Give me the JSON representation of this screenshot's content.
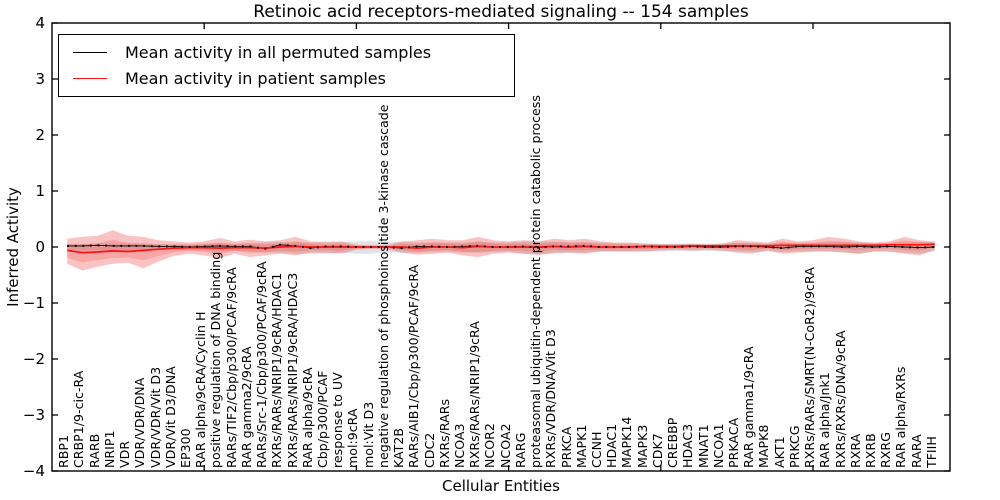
{
  "figure": {
    "title": "Retinoic acid receptors-mediated signaling -- 154 samples"
  },
  "legend": {
    "entries": [
      {
        "label": "Mean activity in all permuted samples",
        "color": "#000000"
      },
      {
        "label": "Mean activity in patient samples",
        "color": "#ff1212"
      }
    ]
  },
  "colors": {
    "permuted_line": "#000000",
    "patient_line": "#ff1212",
    "permuted_band": "rgba(60,60,60,0.15)",
    "patient_band_outer": "rgba(235,35,35,0.27)",
    "patient_band_inner": "rgba(235,35,35,0.18)"
  },
  "chart_data": {
    "type": "line",
    "title": "Retinoic acid receptors-mediated signaling -- 154 samples",
    "xlabel": "Cellular Entities",
    "ylabel": "Inferred Activity",
    "ylim": [
      -4,
      4
    ],
    "yticks": [
      4,
      3,
      2,
      1,
      0,
      -1,
      -2,
      -3,
      -4
    ],
    "x_major_ticks": [
      10,
      20,
      30,
      40,
      50
    ],
    "grid": false,
    "legend_position": "upper left",
    "categories": [
      "RBP1",
      "CRBP1/9-cic-RA",
      "RARB",
      "NRIP1",
      "VDR",
      "VDR/VDR/DNA",
      "VDR/VDR/Vit D3",
      "VDR/Vit D3/DNA",
      "EP300",
      "RAR alpha/9cRA/Cyclin H",
      "positive regulation of DNA binding",
      "RARs/TIF2/Cbp/p300/PCAF/9cRA",
      "RAR gamma2/9cRA",
      "RARs/Src-1/Cbp/p300/PCAF/9cRA",
      "RXRs/RARs/NRIP1/9cRA/HDAC1",
      "RXRs/RARs/NRIP1/9cRA/HDAC3",
      "RAR alpha/9cRA",
      "Cbp/p300/PCAF",
      "response to UV",
      "mol:9cRA",
      "mol:Vit D3",
      "negative regulation of phosphoinositide 3-kinase cascade",
      "KAT2B",
      "RARs/AIB1/Cbp/p300/PCAF/9cRA",
      "CDC2",
      "RXRs/RARs",
      "NCOA3",
      "RXRs/RARs/NRIP1/9cRA",
      "NCOR2",
      "NCOA2",
      "RARG",
      "proteasomal ubiquitin-dependent protein catabolic process",
      "RXRs/VDR/DNA/Vit D3",
      "PRKCA",
      "MAPK1",
      "CCNH",
      "HDAC1",
      "MAPK14",
      "MAPK3",
      "CDK7",
      "CREBBP",
      "HDAC3",
      "MNAT1",
      "NCOA1",
      "PRKACA",
      "RAR gamma1/9cRA",
      "MAPK8",
      "AKT1",
      "PRKCG",
      "RXRs/RARs/SMRT(N-CoR2)/9cRA",
      "RAR alpha/Jnk1",
      "RXRs/RXRs/DNA/9cRA",
      "RXRA",
      "RXRB",
      "RXRG",
      "RAR alpha/RXRs",
      "RARA",
      "TFIIH"
    ],
    "series": [
      {
        "name": "Mean activity in all permuted samples",
        "color": "#000000",
        "values": [
          0.02,
          0.02,
          0.03,
          0.02,
          0.02,
          0.02,
          0.01,
          0.01,
          0.0,
          0.01,
          0.02,
          0.01,
          0.01,
          -0.03,
          0.04,
          0.02,
          -0.02,
          0.01,
          0.01,
          0.0,
          0.0,
          0.0,
          -0.02,
          0.01,
          0.01,
          0.0,
          0.01,
          0.02,
          0.0,
          0.0,
          0.01,
          -0.01,
          0.01,
          0.01,
          0.02,
          0.0,
          0.0,
          0.0,
          0.01,
          0.0,
          0.0,
          0.01,
          0.0,
          0.0,
          0.01,
          0.01,
          0.0,
          -0.02,
          0.01,
          0.01,
          0.01,
          0.0,
          0.01,
          0.0,
          0.01,
          0.0,
          -0.01,
          0.0
        ]
      },
      {
        "name": "Mean activity in patient samples",
        "color": "#ff1212",
        "values": [
          -0.06,
          -0.1,
          -0.09,
          -0.07,
          -0.08,
          -0.06,
          -0.04,
          -0.02,
          -0.01,
          -0.01,
          -0.02,
          -0.01,
          -0.01,
          -0.02,
          0.0,
          0.01,
          0.0,
          0.0,
          0.0,
          0.0,
          0.0,
          0.0,
          0.0,
          -0.02,
          0.0,
          0.0,
          -0.01,
          0.01,
          0.0,
          0.0,
          0.0,
          0.0,
          0.01,
          0.0,
          0.01,
          0.0,
          0.0,
          0.0,
          0.01,
          0.01,
          0.01,
          0.02,
          0.02,
          0.02,
          0.02,
          0.02,
          0.02,
          0.03,
          0.03,
          0.03,
          0.03,
          0.03,
          0.03,
          0.03,
          0.04,
          0.04,
          0.04,
          0.05
        ]
      }
    ],
    "bands": [
      {
        "name": "permuted activity range",
        "color": "rgba(60,60,60,0.15)",
        "upper": [
          0.05,
          0.05,
          0.06,
          0.06,
          0.06,
          0.05,
          0.05,
          0.05,
          0.05,
          0.06,
          0.07,
          0.06,
          0.07,
          0.08,
          0.09,
          0.08,
          0.08,
          0.1,
          0.09,
          0.1,
          0.1,
          0.1,
          0.09,
          0.08,
          0.08,
          0.08,
          0.08,
          0.09,
          0.08,
          0.08,
          0.1,
          0.1,
          0.1,
          0.09,
          0.08,
          0.08,
          0.07,
          0.07,
          0.06,
          0.06,
          0.06,
          0.06,
          0.06,
          0.06,
          0.07,
          0.07,
          0.06,
          0.07,
          0.07,
          0.07,
          0.08,
          0.08,
          0.08,
          0.07,
          0.07,
          0.08,
          0.09,
          0.08
        ],
        "lower": [
          -0.05,
          -0.06,
          -0.06,
          -0.07,
          -0.06,
          -0.06,
          -0.05,
          -0.05,
          -0.06,
          -0.06,
          -0.08,
          -0.07,
          -0.08,
          -0.1,
          -0.1,
          -0.12,
          -0.12,
          -0.12,
          -0.1,
          -0.12,
          -0.12,
          -0.1,
          -0.1,
          -0.1,
          -0.09,
          -0.08,
          -0.1,
          -0.1,
          -0.09,
          -0.08,
          -0.12,
          -0.14,
          -0.12,
          -0.1,
          -0.1,
          -0.08,
          -0.08,
          -0.08,
          -0.08,
          -0.08,
          -0.07,
          -0.08,
          -0.07,
          -0.08,
          -0.08,
          -0.09,
          -0.08,
          -0.09,
          -0.08,
          -0.08,
          -0.08,
          -0.09,
          -0.12,
          -0.08,
          -0.08,
          -0.1,
          -0.12,
          -0.08
        ]
      },
      {
        "name": "patient activity range",
        "color": "rgba(235,35,35,0.27)",
        "inner_scale": 0.55,
        "upper": [
          0.15,
          0.18,
          0.2,
          0.3,
          0.2,
          0.18,
          0.12,
          0.1,
          0.08,
          0.1,
          0.16,
          0.1,
          0.13,
          0.1,
          0.12,
          0.18,
          0.1,
          0.08,
          0.1,
          0.04,
          0.03,
          0.03,
          0.1,
          0.12,
          0.15,
          0.12,
          0.12,
          0.18,
          0.12,
          0.1,
          0.12,
          0.1,
          0.15,
          0.12,
          0.15,
          0.1,
          0.08,
          0.08,
          0.06,
          0.05,
          0.05,
          0.06,
          0.05,
          0.06,
          0.12,
          0.1,
          0.08,
          0.15,
          0.1,
          0.12,
          0.18,
          0.15,
          0.1,
          0.08,
          0.1,
          0.18,
          0.12,
          0.1
        ],
        "lower": [
          -0.3,
          -0.42,
          -0.35,
          -0.3,
          -0.28,
          -0.38,
          -0.26,
          -0.16,
          -0.12,
          -0.15,
          -0.2,
          -0.12,
          -0.18,
          -0.15,
          -0.12,
          -0.15,
          -0.1,
          -0.1,
          -0.12,
          -0.05,
          -0.03,
          -0.04,
          -0.1,
          -0.14,
          -0.12,
          -0.1,
          -0.15,
          -0.18,
          -0.12,
          -0.1,
          -0.12,
          -0.14,
          -0.1,
          -0.1,
          -0.12,
          -0.08,
          -0.08,
          -0.08,
          -0.08,
          -0.06,
          -0.05,
          -0.06,
          -0.05,
          -0.06,
          -0.1,
          -0.12,
          -0.06,
          -0.12,
          -0.1,
          -0.08,
          -0.08,
          -0.1,
          -0.12,
          -0.08,
          -0.08,
          -0.12,
          -0.15,
          -0.05
        ]
      }
    ]
  }
}
